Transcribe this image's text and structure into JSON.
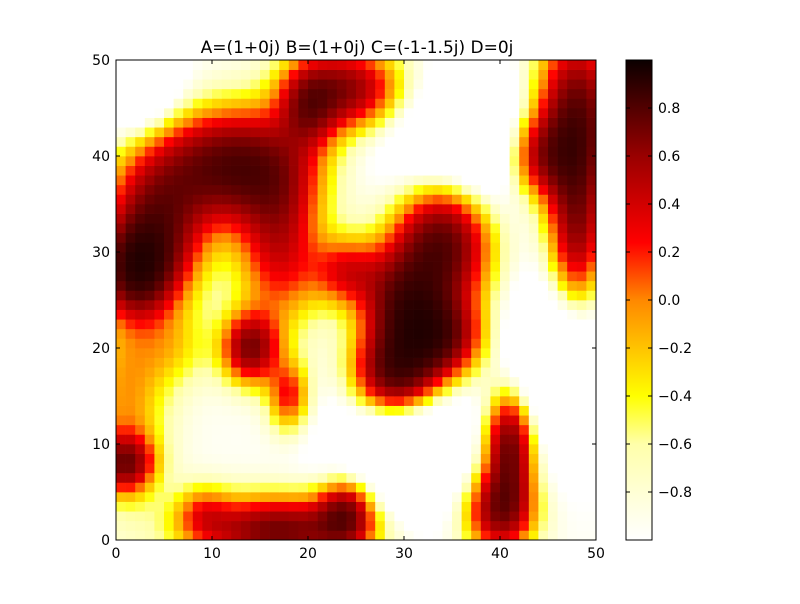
{
  "chart_data": {
    "type": "heatmap",
    "title": "A=(1+0j)  B=(1+0j)  C=(-1-1.5j)  D=0j",
    "xlabel": "",
    "ylabel": "",
    "xlim": [
      0,
      50
    ],
    "ylim": [
      0,
      50
    ],
    "x_ticks": [
      0,
      10,
      20,
      30,
      40,
      50
    ],
    "y_ticks": [
      0,
      10,
      20,
      30,
      40,
      50
    ],
    "x_tick_labels": [
      "0",
      "10",
      "20",
      "30",
      "40",
      "50"
    ],
    "y_tick_labels": [
      "0",
      "10",
      "20",
      "30",
      "40",
      "50"
    ],
    "colormap": "hot_r",
    "colorbar": {
      "range": [
        -1.0,
        1.0
      ],
      "ticks": [
        0.8,
        0.6,
        0.4,
        0.2,
        0.0,
        -0.2,
        -0.4,
        -0.6,
        -0.8
      ],
      "tick_labels": [
        "0.8",
        "0.6",
        "0.4",
        "0.2",
        "0.0",
        "−0.2",
        "−0.4",
        "−0.6",
        "−0.8"
      ]
    },
    "grid": {
      "rows": 50,
      "cols": 50,
      "blobs": [
        {
          "x": 12,
          "y": 39,
          "sx": 5.5,
          "sy": 4.0,
          "v": 1.0
        },
        {
          "x": 4,
          "y": 32,
          "sx": 3.5,
          "sy": 5.0,
          "v": 0.9
        },
        {
          "x": 2,
          "y": 28,
          "sx": 2.5,
          "sy": 3.0,
          "v": 0.8
        },
        {
          "x": 17,
          "y": 31,
          "sx": 3.0,
          "sy": 6.0,
          "v": 0.6
        },
        {
          "x": 20,
          "y": 45,
          "sx": 2.0,
          "sy": 3.0,
          "v": 0.5
        },
        {
          "x": 24,
          "y": 47,
          "sx": 4.0,
          "sy": 3.0,
          "v": 0.8
        },
        {
          "x": 48,
          "y": 44,
          "sx": 3.0,
          "sy": 6.0,
          "v": 1.0
        },
        {
          "x": 44,
          "y": 40,
          "sx": 2.5,
          "sy": 3.0,
          "v": 0.6
        },
        {
          "x": 48,
          "y": 32,
          "sx": 2.0,
          "sy": 6.0,
          "v": 0.7
        },
        {
          "x": 34,
          "y": 31,
          "sx": 3.5,
          "sy": 4.5,
          "v": 1.0
        },
        {
          "x": 30,
          "y": 24,
          "sx": 3.0,
          "sy": 4.0,
          "v": 0.9
        },
        {
          "x": 29,
          "y": 17,
          "sx": 3.0,
          "sy": 3.0,
          "v": 0.95
        },
        {
          "x": 34,
          "y": 21,
          "sx": 3.0,
          "sy": 3.0,
          "v": 0.8
        },
        {
          "x": 24,
          "y": 28,
          "sx": 2.5,
          "sy": 2.5,
          "v": 0.5
        },
        {
          "x": 14,
          "y": 20,
          "sx": 2.0,
          "sy": 2.5,
          "v": 0.8
        },
        {
          "x": 18,
          "y": 15,
          "sx": 1.5,
          "sy": 2.5,
          "v": 0.5
        },
        {
          "x": 41,
          "y": 10,
          "sx": 1.8,
          "sy": 4.0,
          "v": 0.95
        },
        {
          "x": 40,
          "y": 3,
          "sx": 2.5,
          "sy": 3.0,
          "v": 0.8
        },
        {
          "x": 17,
          "y": 1,
          "sx": 6.0,
          "sy": 2.5,
          "v": 0.9
        },
        {
          "x": 24,
          "y": 3,
          "sx": 2.0,
          "sy": 2.5,
          "v": 0.7
        },
        {
          "x": 1,
          "y": 8,
          "sx": 2.0,
          "sy": 2.0,
          "v": 0.7
        },
        {
          "x": 1,
          "y": 14,
          "sx": 3.0,
          "sy": 7.0,
          "v": 0.35
        },
        {
          "x": 6,
          "y": 20,
          "sx": 3.0,
          "sy": 3.0,
          "v": 0.2
        },
        {
          "x": 9,
          "y": 3,
          "sx": 2.0,
          "sy": 2.0,
          "v": 0.3
        },
        {
          "x": 30,
          "y": 10,
          "sx": 5.0,
          "sy": 5.0,
          "v": -0.4
        },
        {
          "x": 37,
          "y": 41,
          "sx": 6.0,
          "sy": 5.0,
          "v": -0.4
        },
        {
          "x": 46,
          "y": 18,
          "sx": 4.0,
          "sy": 6.0,
          "v": -0.4
        },
        {
          "x": 2,
          "y": 47,
          "sx": 3.0,
          "sy": 3.0,
          "v": -0.4
        }
      ]
    }
  }
}
